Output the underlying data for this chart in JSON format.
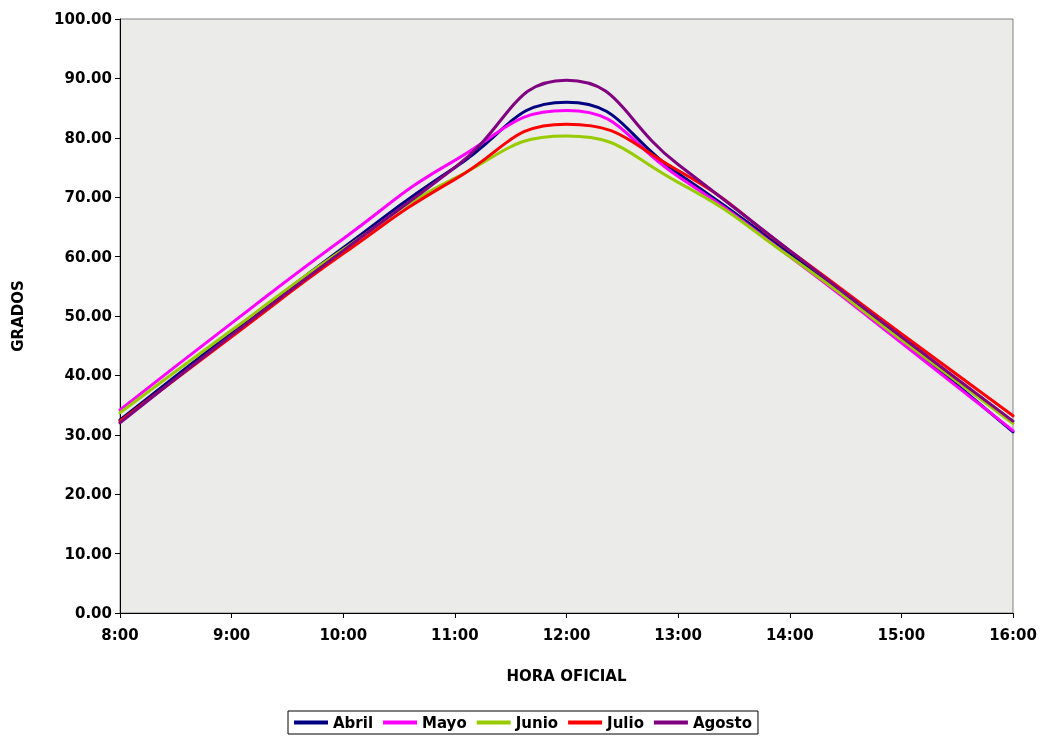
{
  "chart_data": {
    "type": "line",
    "xlabel": "HORA OFICIAL",
    "ylabel": "GRADOS",
    "x": [
      8,
      9,
      10,
      11,
      12,
      13,
      14,
      15,
      16
    ],
    "xlim": [
      8,
      16
    ],
    "xticks": [
      {
        "value": 8,
        "label": "8:00"
      },
      {
        "value": 9,
        "label": "9:00"
      },
      {
        "value": 10,
        "label": "10:00"
      },
      {
        "value": 11,
        "label": "11:00"
      },
      {
        "value": 12,
        "label": "12:00"
      },
      {
        "value": 13,
        "label": "13:00"
      },
      {
        "value": 14,
        "label": "14:00"
      },
      {
        "value": 15,
        "label": "15:00"
      },
      {
        "value": 16,
        "label": "16:00"
      }
    ],
    "ylim": [
      0,
      100
    ],
    "yticks": [
      {
        "value": 0,
        "label": "0.00"
      },
      {
        "value": 10,
        "label": "10.00"
      },
      {
        "value": 20,
        "label": "20.00"
      },
      {
        "value": 30,
        "label": "30.00"
      },
      {
        "value": 40,
        "label": "40.00"
      },
      {
        "value": 50,
        "label": "50.00"
      },
      {
        "value": 60,
        "label": "60.00"
      },
      {
        "value": 70,
        "label": "70.00"
      },
      {
        "value": 80,
        "label": "80.00"
      },
      {
        "value": 90,
        "label": "90.00"
      },
      {
        "value": 100,
        "label": "100.00"
      }
    ],
    "series": [
      {
        "name": "Abril",
        "color": "#000080",
        "values": [
          32.5,
          47.2,
          61.5,
          75,
          86,
          74,
          60.5,
          46,
          30.5
        ]
      },
      {
        "name": "Mayo",
        "color": "#ff00ff",
        "values": [
          34.2,
          48.8,
          63,
          76.2,
          84.6,
          73.5,
          60,
          45.5,
          30.7
        ]
      },
      {
        "name": "Junio",
        "color": "#99cc00",
        "values": [
          33.7,
          47.6,
          61.2,
          73.2,
          80.3,
          72.5,
          60,
          46,
          31.9
        ]
      },
      {
        "name": "Julio",
        "color": "#ff0000",
        "values": [
          32.3,
          46.5,
          60.5,
          73,
          82.3,
          74.5,
          61,
          47,
          33.2
        ]
      },
      {
        "name": "Agosto",
        "color": "#800080",
        "values": [
          32,
          46.8,
          61,
          75,
          89.7,
          75.5,
          61,
          46.5,
          32.3
        ]
      }
    ],
    "grid": false,
    "legend": "bottom",
    "marker": "none",
    "line_style": "solid"
  }
}
